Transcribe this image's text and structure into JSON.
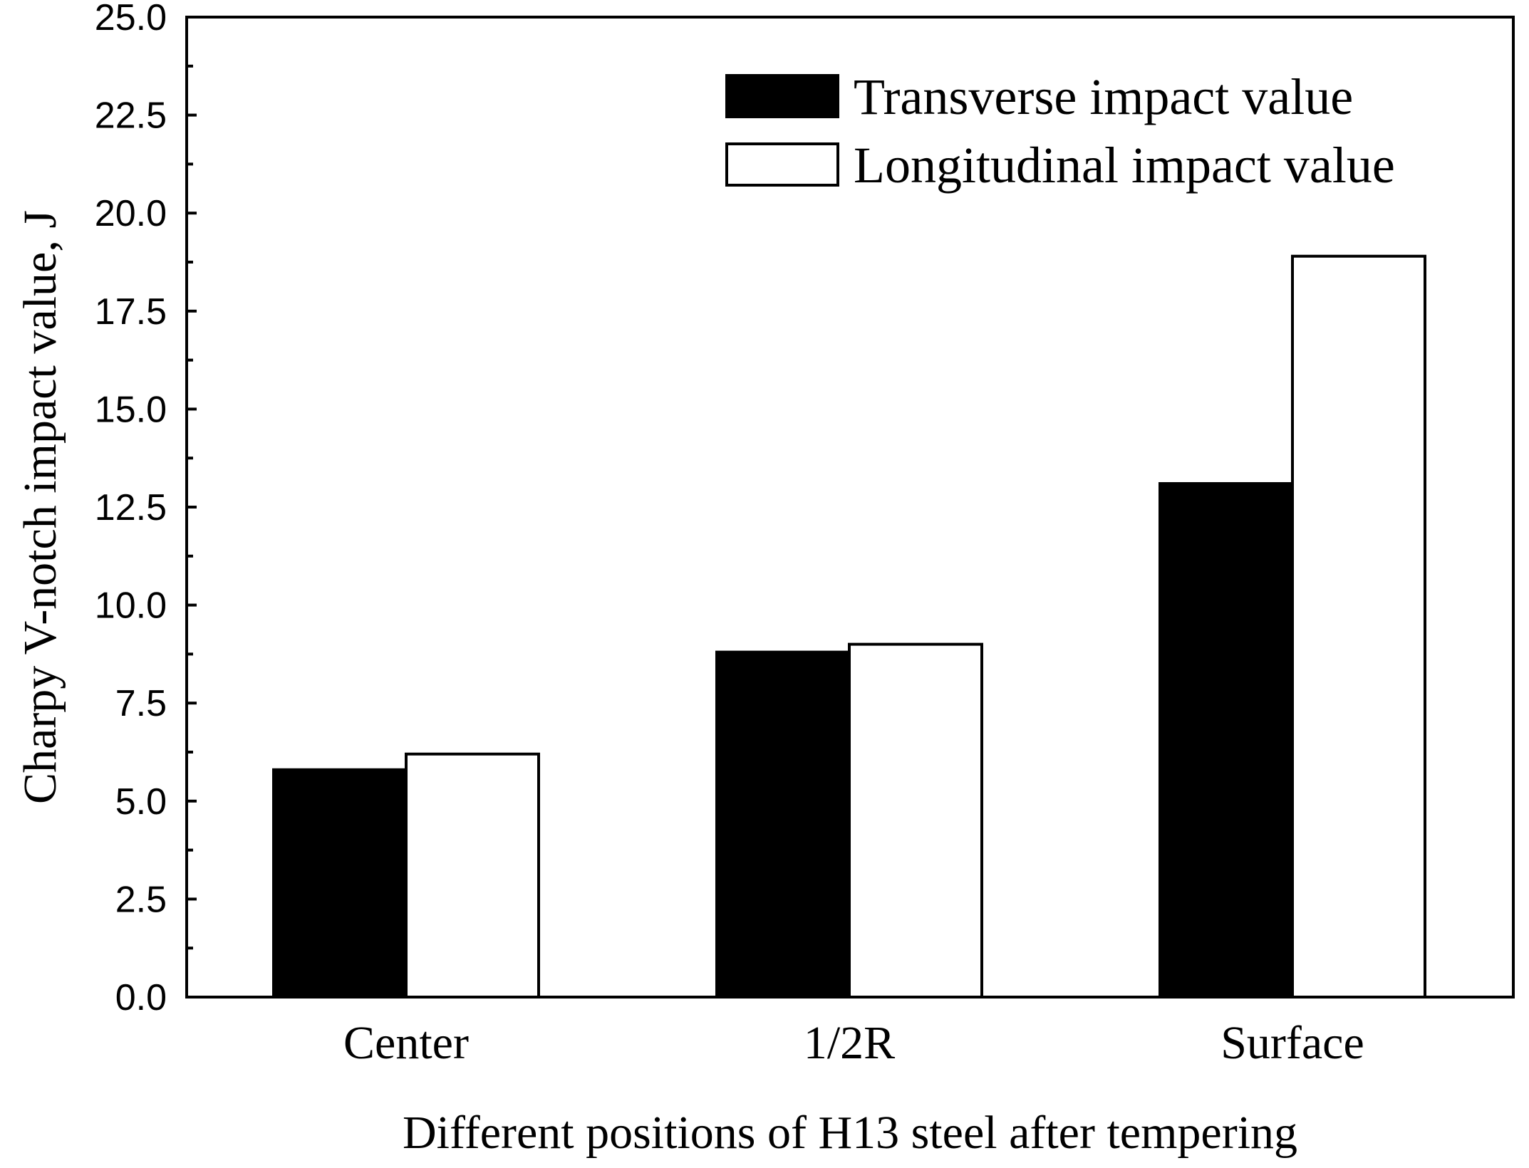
{
  "chart_data": {
    "type": "bar",
    "title": "",
    "xlabel": "Different positions of H13 steel after tempering",
    "ylabel": "Charpy V-notch impact value, J",
    "categories": [
      "Center",
      "1/2R",
      "Surface"
    ],
    "ylim": [
      0,
      25
    ],
    "yticks": [
      "0.0",
      "2.5",
      "5.0",
      "7.5",
      "10.0",
      "12.5",
      "15.0",
      "17.5",
      "20.0",
      "22.5",
      "25.0"
    ],
    "grid": false,
    "legend_position": "top-right",
    "series": [
      {
        "name": "Transverse impact value",
        "fill": "#000000",
        "values": [
          5.8,
          8.8,
          13.1
        ]
      },
      {
        "name": "Longitudinal impact value",
        "fill": "#ffffff",
        "values": [
          6.2,
          9.0,
          18.9
        ]
      }
    ]
  }
}
